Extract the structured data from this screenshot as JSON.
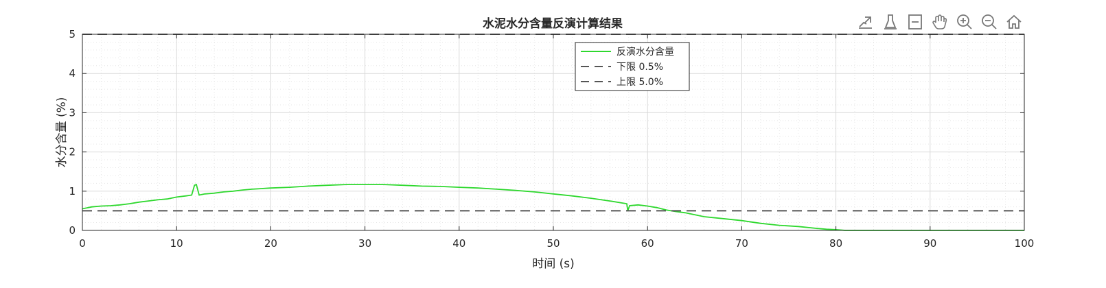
{
  "toolbar": {
    "icons": [
      "export-icon",
      "brush-icon",
      "datatip-icon",
      "pan-hand-icon",
      "zoom-in-icon",
      "zoom-out-icon",
      "home-icon"
    ]
  },
  "colors": {
    "series": "#2ed82e",
    "reference": "#555555",
    "grid": "#d9d9d9",
    "axis": "#262626"
  },
  "chart_data": {
    "type": "line",
    "title": "水泥水分含量反演计算结果",
    "xlabel": "时间 (s)",
    "ylabel": "水分含量 (%)",
    "xlim": [
      0,
      100
    ],
    "ylim": [
      0,
      5
    ],
    "x_ticks": [
      0,
      10,
      20,
      30,
      40,
      50,
      60,
      70,
      80,
      90,
      100
    ],
    "y_ticks": [
      0,
      1,
      2,
      3,
      4,
      5
    ],
    "grid": "major and minor, dotted",
    "legend_position": "top-center",
    "series": [
      {
        "name": "反演水分含量",
        "style": "solid",
        "color": "#2ed82e",
        "x": [
          0,
          1,
          2,
          3,
          4,
          5,
          6,
          7,
          8,
          9,
          10,
          11,
          11.6,
          11.9,
          12.1,
          12.4,
          13,
          14,
          15,
          16,
          17,
          18,
          20,
          22,
          24,
          26,
          28,
          30,
          32,
          34,
          36,
          38,
          40,
          42,
          44,
          46,
          48,
          50,
          52,
          54,
          56,
          57.8,
          57.9,
          58.1,
          59,
          60,
          61,
          62,
          63,
          64,
          65,
          66,
          68,
          70,
          72,
          74,
          76,
          78,
          79,
          80,
          81,
          85,
          90,
          95,
          100
        ],
        "y": [
          0.55,
          0.6,
          0.62,
          0.63,
          0.65,
          0.68,
          0.72,
          0.75,
          0.78,
          0.8,
          0.85,
          0.88,
          0.9,
          1.15,
          1.17,
          0.9,
          0.93,
          0.95,
          0.98,
          1.0,
          1.03,
          1.05,
          1.08,
          1.1,
          1.13,
          1.15,
          1.17,
          1.17,
          1.17,
          1.15,
          1.13,
          1.12,
          1.1,
          1.08,
          1.05,
          1.02,
          0.98,
          0.93,
          0.88,
          0.82,
          0.75,
          0.68,
          0.5,
          0.63,
          0.65,
          0.62,
          0.58,
          0.52,
          0.48,
          0.45,
          0.4,
          0.35,
          0.3,
          0.25,
          0.18,
          0.13,
          0.1,
          0.05,
          0.03,
          0.02,
          0.0,
          0.0,
          0.0,
          0.0,
          0.0
        ]
      },
      {
        "name": "下限 0.5%",
        "style": "dashed",
        "color": "#555555",
        "x": [
          0,
          100
        ],
        "y": [
          0.5,
          0.5
        ]
      },
      {
        "name": "上限 5.0%",
        "style": "dashed",
        "color": "#555555",
        "x": [
          0,
          100
        ],
        "y": [
          5.0,
          5.0
        ]
      }
    ]
  }
}
